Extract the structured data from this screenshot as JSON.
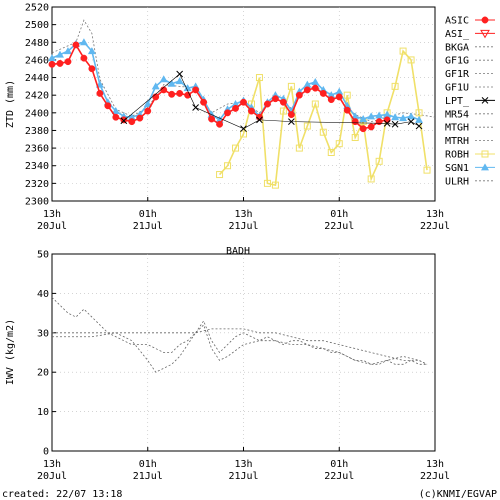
{
  "footer": {
    "created": "created: 22/07 13:18",
    "credit": "(c)KNMI/EGVAP"
  },
  "chart_data": [
    {
      "type": "line",
      "title": "",
      "xlabel": "",
      "ylabel": "ZTD (mm)",
      "ylim": [
        2300,
        2520
      ],
      "xlim": [
        0,
        48
      ],
      "yticks": [
        2300,
        2320,
        2340,
        2360,
        2380,
        2400,
        2420,
        2440,
        2460,
        2480,
        2500,
        2520
      ],
      "xticks": [
        {
          "x": 0,
          "top": "13h",
          "bottom": "20Jul"
        },
        {
          "x": 12,
          "top": "01h",
          "bottom": "21Jul"
        },
        {
          "x": 24,
          "top": "13h",
          "bottom": "21Jul"
        },
        {
          "x": 36,
          "top": "01h",
          "bottom": "22Jul"
        },
        {
          "x": 48,
          "top": "13h",
          "bottom": "22Jul"
        }
      ],
      "grid": true,
      "legend_position": "right",
      "legend": [
        "ASIC",
        "ASI_",
        "BKGA",
        "GF1G",
        "GF1R",
        "GF1U",
        "LPT_",
        "MR54",
        "MTGH",
        "MTRH",
        "ROBH",
        "SGN1",
        "ULRH"
      ],
      "colors": {
        "ASIC": "#ff2020",
        "ASI_": "#ff2020",
        "ROBH": "#f0e068",
        "SGN1": "#60b8f0",
        "LPT_": "#000000",
        "grey": "#777777"
      },
      "series": [
        {
          "name": "ASIC",
          "marker": "filled-circle",
          "x": [
            0,
            1,
            2,
            3,
            4,
            5,
            6,
            7,
            8,
            9,
            10,
            11,
            12,
            13,
            14,
            15,
            16,
            17,
            18,
            19,
            20,
            21,
            22,
            23,
            24,
            25,
            26,
            27,
            28,
            29,
            30,
            31,
            32,
            33,
            34,
            35,
            36,
            37,
            38,
            39,
            40,
            41,
            42
          ],
          "values": [
            2455,
            2456,
            2458,
            2477,
            2462,
            2450,
            2422,
            2408,
            2395,
            2392,
            2390,
            2394,
            2402,
            2418,
            2426,
            2421,
            2422,
            2420,
            2426,
            2412,
            2393,
            2387,
            2400,
            2405,
            2412,
            2402,
            2395,
            2410,
            2416,
            2412,
            2398,
            2420,
            2426,
            2428,
            2422,
            2415,
            2418,
            2403,
            2390,
            2382,
            2384,
            2390,
            2392
          ]
        },
        {
          "name": "SGN1",
          "marker": "filled-triangle",
          "x": [
            0,
            1,
            2,
            3,
            4,
            5,
            6,
            7,
            8,
            9,
            10,
            11,
            12,
            13,
            14,
            15,
            16,
            17,
            18,
            19,
            20,
            21,
            22,
            23,
            24,
            25,
            26,
            27,
            28,
            29,
            30,
            31,
            32,
            33,
            34,
            35,
            36,
            37,
            38,
            39,
            40,
            41,
            42,
            43,
            44,
            45,
            46
          ],
          "values": [
            2462,
            2466,
            2470,
            2478,
            2480,
            2470,
            2432,
            2412,
            2402,
            2396,
            2395,
            2398,
            2410,
            2430,
            2438,
            2433,
            2436,
            2428,
            2430,
            2415,
            2398,
            2392,
            2404,
            2410,
            2414,
            2406,
            2396,
            2412,
            2420,
            2416,
            2402,
            2424,
            2432,
            2435,
            2426,
            2420,
            2424,
            2408,
            2396,
            2393,
            2396,
            2397,
            2398,
            2395,
            2394,
            2396,
            2392
          ]
        },
        {
          "name": "ROBH",
          "marker": "open-square",
          "x": [
            21,
            22,
            23,
            24,
            25,
            26,
            27,
            28,
            29,
            30,
            31,
            32,
            33,
            34,
            35,
            36,
            37,
            38,
            39,
            40,
            41,
            42,
            43,
            44,
            45,
            46,
            47
          ],
          "values": [
            2330,
            2340,
            2360,
            2376,
            2410,
            2440,
            2320,
            2318,
            2402,
            2430,
            2360,
            2385,
            2410,
            2378,
            2355,
            2365,
            2420,
            2372,
            2390,
            2325,
            2345,
            2400,
            2430,
            2470,
            2460,
            2400,
            2335
          ]
        },
        {
          "name": "LPT_",
          "marker": "x",
          "x": [
            9,
            16,
            18,
            24,
            26,
            30,
            42,
            43,
            45,
            46
          ],
          "values": [
            2391,
            2444,
            2406,
            2382,
            2392,
            2390,
            2388,
            2387,
            2390,
            2385
          ]
        },
        {
          "name": "BKGA",
          "marker": "none",
          "x": [
            0,
            3,
            4,
            5,
            6,
            8,
            10,
            12,
            14,
            16,
            18,
            20,
            22,
            24,
            26,
            28,
            30,
            32,
            34,
            36,
            38,
            40,
            42,
            44,
            46,
            48
          ],
          "values": [
            2468,
            2480,
            2505,
            2490,
            2438,
            2404,
            2396,
            2406,
            2432,
            2430,
            2428,
            2400,
            2410,
            2412,
            2400,
            2418,
            2405,
            2430,
            2426,
            2416,
            2398,
            2390,
            2395,
            2400,
            2398,
            2395
          ]
        }
      ]
    },
    {
      "type": "line",
      "title": "BADH",
      "xlabel": "",
      "ylabel": "IWV (kg/m2)",
      "ylim": [
        0,
        50
      ],
      "xlim": [
        0,
        48
      ],
      "yticks": [
        0,
        10,
        20,
        30,
        40,
        50
      ],
      "xticks": [
        {
          "x": 0,
          "top": "13h",
          "bottom": "20Jul"
        },
        {
          "x": 12,
          "top": "01h",
          "bottom": "21Jul"
        },
        {
          "x": 24,
          "top": "13h",
          "bottom": "21Jul"
        },
        {
          "x": 36,
          "top": "01h",
          "bottom": "22Jul"
        },
        {
          "x": 48,
          "top": "13h",
          "bottom": "22Jul"
        }
      ],
      "grid": true,
      "series": [
        {
          "marker": "none",
          "x": [
            0,
            1,
            2,
            3,
            4,
            5,
            6,
            7,
            8,
            9,
            10,
            11,
            12,
            13,
            14,
            15,
            16,
            17,
            18,
            19,
            20,
            21,
            22,
            23,
            24,
            25,
            26,
            27,
            28,
            29,
            30,
            31,
            32,
            33,
            34,
            35,
            36,
            37,
            38,
            39,
            40,
            41,
            42,
            43,
            44,
            45,
            46,
            47
          ],
          "values": [
            39,
            37,
            35,
            34,
            36,
            34,
            32,
            30,
            29,
            28,
            27,
            27,
            27,
            26,
            25,
            25,
            27,
            28,
            30,
            33,
            28,
            25,
            27,
            29,
            30,
            29,
            28,
            29,
            28,
            27,
            28,
            28,
            27,
            26,
            26,
            25,
            25,
            24,
            23,
            23,
            22,
            22,
            23,
            22,
            22,
            23,
            22,
            22
          ]
        },
        {
          "marker": "none",
          "x": [
            0,
            2,
            4,
            6,
            8,
            10,
            12,
            14,
            16,
            18,
            20,
            22,
            24,
            26,
            28,
            30,
            32,
            34,
            36,
            38,
            40,
            42,
            44,
            46,
            47
          ],
          "values": [
            30,
            30,
            30,
            30,
            30,
            30,
            30,
            30,
            30,
            30,
            31,
            31,
            31,
            30,
            30,
            29,
            28,
            28,
            27,
            26,
            25,
            24,
            23,
            23,
            22
          ]
        },
        {
          "marker": "none",
          "x": [
            0,
            3,
            5,
            8,
            10,
            12,
            13,
            14,
            15,
            16,
            18,
            19,
            20,
            21,
            22,
            24,
            26,
            28,
            30,
            32,
            34,
            36,
            38,
            40,
            42,
            44,
            46,
            47
          ],
          "values": [
            29,
            29,
            29,
            30,
            28,
            23,
            20,
            21,
            22,
            24,
            30,
            32,
            26,
            23,
            24,
            27,
            28,
            28,
            27,
            27,
            26,
            25,
            23,
            22,
            23,
            24,
            23,
            22
          ]
        }
      ]
    }
  ]
}
